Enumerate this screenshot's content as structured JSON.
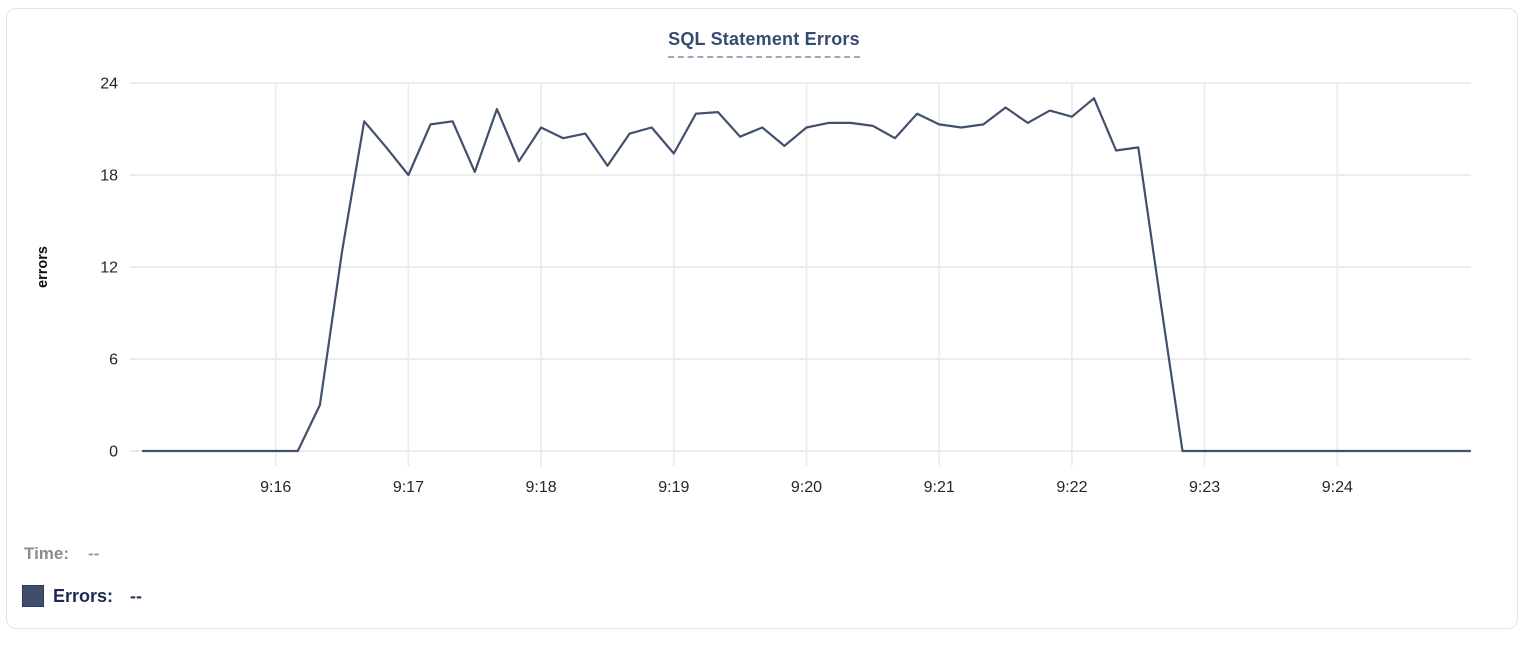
{
  "chart_data": {
    "type": "line",
    "title": "SQL Statement Errors",
    "xlabel": "",
    "ylabel": "errors",
    "ylim": [
      0,
      24
    ],
    "yticks": [
      0,
      6,
      12,
      18,
      24
    ],
    "x_ticks": [
      "9:16",
      "9:17",
      "9:18",
      "9:19",
      "9:20",
      "9:21",
      "9:22",
      "9:23",
      "9:24"
    ],
    "x_range": [
      "9:15:00",
      "9:25:00"
    ],
    "sample_interval_seconds": 10,
    "grid": "on",
    "legend_position": "bottom-left",
    "series": [
      {
        "name": "Errors",
        "times": [
          "9:15:00",
          "9:15:10",
          "9:15:20",
          "9:15:30",
          "9:15:40",
          "9:15:50",
          "9:16:00",
          "9:16:10",
          "9:16:20",
          "9:16:30",
          "9:16:40",
          "9:16:50",
          "9:17:00",
          "9:17:10",
          "9:17:20",
          "9:17:30",
          "9:17:40",
          "9:17:50",
          "9:18:00",
          "9:18:10",
          "9:18:20",
          "9:18:30",
          "9:18:40",
          "9:18:50",
          "9:19:00",
          "9:19:10",
          "9:19:20",
          "9:19:30",
          "9:19:40",
          "9:19:50",
          "9:20:00",
          "9:20:10",
          "9:20:20",
          "9:20:30",
          "9:20:40",
          "9:20:50",
          "9:21:00",
          "9:21:10",
          "9:21:20",
          "9:21:30",
          "9:21:40",
          "9:21:50",
          "9:22:00",
          "9:22:10",
          "9:22:20",
          "9:22:30",
          "9:22:40",
          "9:22:50",
          "9:23:00",
          "9:23:10",
          "9:23:20",
          "9:23:30",
          "9:23:40",
          "9:23:50",
          "9:24:00",
          "9:24:10",
          "9:24:20",
          "9:24:30",
          "9:24:40",
          "9:24:50",
          "9:25:00"
        ],
        "values": [
          0,
          0,
          0,
          0,
          0,
          0,
          0,
          0,
          3,
          13,
          21.5,
          19.8,
          18,
          21.3,
          21.5,
          18.2,
          22.3,
          18.9,
          21.1,
          20.4,
          20.7,
          18.6,
          20.7,
          21.1,
          19.4,
          22,
          22.1,
          20.5,
          21.1,
          19.9,
          21.1,
          21.4,
          21.4,
          21.2,
          20.4,
          22,
          21.3,
          21.1,
          21.3,
          22.4,
          21.4,
          22.2,
          21.8,
          23,
          19.6,
          19.8,
          9.8,
          0,
          0,
          0,
          0,
          0,
          0,
          0,
          0,
          0,
          0,
          0,
          0,
          0,
          0
        ]
      }
    ]
  },
  "legend": {
    "time_label": "Time:",
    "time_value": "--",
    "errors_label": "Errors:",
    "errors_value": "--"
  },
  "colors": {
    "line": "#42506d",
    "swatch": "#3f4e6b",
    "title": "#374b70",
    "title_underline": "#9aa9c0",
    "grid": "#ececec",
    "axis_text": "#262626",
    "y_axis_title": "#0d0d0d",
    "legend_time": "#8c8c8c",
    "legend_errors": "#1c2b51",
    "card_border": "#e3e3e3",
    "background": "#ffffff"
  }
}
